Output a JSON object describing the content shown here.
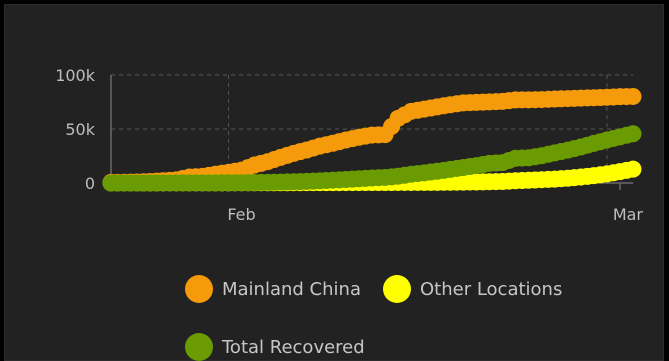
{
  "chart_data": {
    "type": "scatter",
    "x_axis": {
      "type": "date",
      "tick_labels": [
        "Feb",
        "Mar"
      ]
    },
    "y_axis": {
      "tick_labels": [
        "0",
        "50k",
        "100k"
      ],
      "ylim": [
        0,
        100000
      ]
    },
    "grid": true,
    "legend_position": "bottom",
    "series": [
      {
        "name": "Mainland China",
        "color": "#f59a0a",
        "x": [
          "2020-01-22",
          "2020-01-23",
          "2020-01-24",
          "2020-01-25",
          "2020-01-26",
          "2020-01-27",
          "2020-01-28",
          "2020-01-29",
          "2020-01-30",
          "2020-01-31",
          "2020-02-01",
          "2020-02-02",
          "2020-02-03",
          "2020-02-04",
          "2020-02-05",
          "2020-02-06",
          "2020-02-07",
          "2020-02-08",
          "2020-02-09",
          "2020-02-10",
          "2020-02-11",
          "2020-02-12",
          "2020-02-13",
          "2020-02-14",
          "2020-02-15",
          "2020-02-16",
          "2020-02-17",
          "2020-02-18",
          "2020-02-19",
          "2020-02-20",
          "2020-02-21",
          "2020-02-22",
          "2020-02-23",
          "2020-02-24",
          "2020-02-25",
          "2020-02-26",
          "2020-02-27",
          "2020-02-28",
          "2020-02-29",
          "2020-03-01",
          "2020-03-02"
        ],
        "y": [
          548,
          643,
          920,
          1406,
          2075,
          2877,
          5509,
          6087,
          8141,
          9802,
          11891,
          16630,
          19716,
          23707,
          27440,
          30587,
          34110,
          36814,
          39829,
          42354,
          44386,
          44759,
          59895,
          66358,
          68413,
          70513,
          72434,
          74211,
          74619,
          75077,
          75550,
          77001,
          77022,
          77241,
          77754,
          78166,
          78600,
          78928,
          79356,
          79932,
          80136
        ]
      },
      {
        "name": "Other Locations",
        "color": "#ffff00",
        "x": [
          "2020-01-22",
          "2020-01-23",
          "2020-01-24",
          "2020-01-25",
          "2020-01-26",
          "2020-01-27",
          "2020-01-28",
          "2020-01-29",
          "2020-01-30",
          "2020-01-31",
          "2020-02-01",
          "2020-02-02",
          "2020-02-03",
          "2020-02-04",
          "2020-02-05",
          "2020-02-06",
          "2020-02-07",
          "2020-02-08",
          "2020-02-09",
          "2020-02-10",
          "2020-02-11",
          "2020-02-12",
          "2020-02-13",
          "2020-02-14",
          "2020-02-15",
          "2020-02-16",
          "2020-02-17",
          "2020-02-18",
          "2020-02-19",
          "2020-02-20",
          "2020-02-21",
          "2020-02-22",
          "2020-02-23",
          "2020-02-24",
          "2020-02-25",
          "2020-02-26",
          "2020-02-27",
          "2020-02-28",
          "2020-02-29",
          "2020-03-01",
          "2020-03-02"
        ],
        "y": [
          7,
          11,
          21,
          28,
          43,
          82,
          106,
          132,
          146,
          153,
          174,
          186,
          213,
          235,
          271,
          306,
          340,
          371,
          391,
          398,
          455,
          483,
          504,
          516,
          548,
          609,
          699,
          803,
          937,
          1125,
          1426,
          2043,
          2520,
          3050,
          3600,
          4400,
          5500,
          6800,
          8400,
          10500,
          12800
        ]
      },
      {
        "name": "Total Recovered",
        "color": "#6a9b00",
        "x": [
          "2020-01-22",
          "2020-01-23",
          "2020-01-24",
          "2020-01-25",
          "2020-01-26",
          "2020-01-27",
          "2020-01-28",
          "2020-01-29",
          "2020-01-30",
          "2020-01-31",
          "2020-02-01",
          "2020-02-02",
          "2020-02-03",
          "2020-02-04",
          "2020-02-05",
          "2020-02-06",
          "2020-02-07",
          "2020-02-08",
          "2020-02-09",
          "2020-02-10",
          "2020-02-11",
          "2020-02-12",
          "2020-02-13",
          "2020-02-14",
          "2020-02-15",
          "2020-02-16",
          "2020-02-17",
          "2020-02-18",
          "2020-02-19",
          "2020-02-20",
          "2020-02-21",
          "2020-02-22",
          "2020-02-23",
          "2020-02-24",
          "2020-02-25",
          "2020-02-26",
          "2020-02-27",
          "2020-02-28",
          "2020-02-29",
          "2020-03-01",
          "2020-03-02"
        ],
        "y": [
          28,
          30,
          36,
          39,
          52,
          61,
          107,
          126,
          143,
          222,
          284,
          472,
          623,
          852,
          1124,
          1487,
          2011,
          2616,
          3244,
          3946,
          4683,
          5150,
          6295,
          8058,
          9395,
          10865,
          12583,
          14352,
          16121,
          18177,
          18890,
          22886,
          23394,
          25227,
          27905,
          30384,
          33277,
          36711,
          39782,
          42716,
          45602
        ]
      }
    ]
  }
}
